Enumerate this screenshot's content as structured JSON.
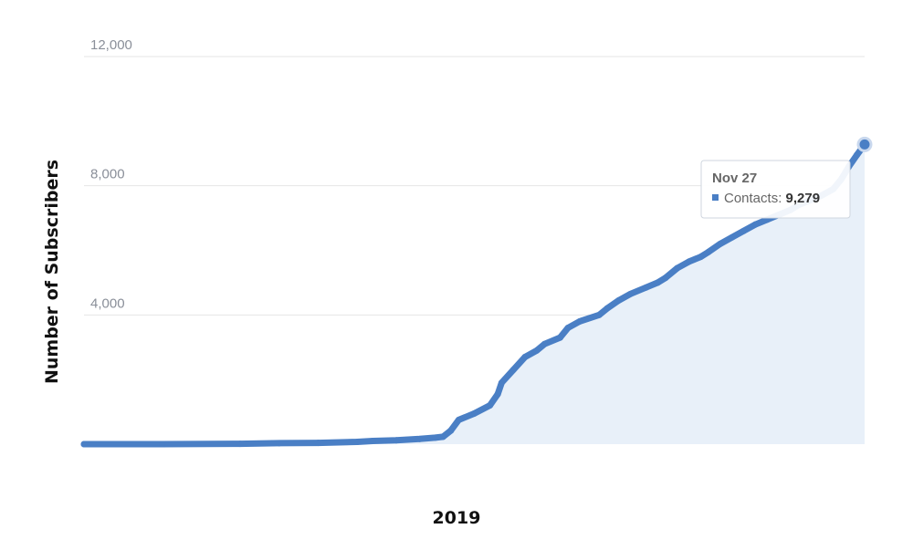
{
  "chart_data": {
    "type": "area",
    "title": "",
    "xlabel": "2019",
    "ylabel": "Number of Subscribers",
    "ylim": [
      0,
      12000
    ],
    "yticks": [
      {
        "value": 4000,
        "label": "4,000"
      },
      {
        "value": 8000,
        "label": "8,000"
      },
      {
        "value": 12000,
        "label": "12,000"
      }
    ],
    "grid": true,
    "series": [
      {
        "name": "Contacts",
        "color": "#4a7fc5",
        "fill_color": "#e8f0f9",
        "points": [
          [
            0.0,
            0
          ],
          [
            0.1,
            0
          ],
          [
            0.2,
            10
          ],
          [
            0.25,
            30
          ],
          [
            0.3,
            40
          ],
          [
            0.35,
            70
          ],
          [
            0.37,
            100
          ],
          [
            0.4,
            120
          ],
          [
            0.43,
            160
          ],
          [
            0.45,
            200
          ],
          [
            0.46,
            230
          ],
          [
            0.47,
            420
          ],
          [
            0.48,
            750
          ],
          [
            0.5,
            950
          ],
          [
            0.52,
            1200
          ],
          [
            0.53,
            1550
          ],
          [
            0.535,
            1900
          ],
          [
            0.55,
            2300
          ],
          [
            0.565,
            2700
          ],
          [
            0.58,
            2900
          ],
          [
            0.59,
            3100
          ],
          [
            0.61,
            3300
          ],
          [
            0.62,
            3600
          ],
          [
            0.635,
            3800
          ],
          [
            0.66,
            4000
          ],
          [
            0.67,
            4200
          ],
          [
            0.685,
            4450
          ],
          [
            0.7,
            4650
          ],
          [
            0.72,
            4850
          ],
          [
            0.735,
            5000
          ],
          [
            0.745,
            5150
          ],
          [
            0.76,
            5450
          ],
          [
            0.775,
            5650
          ],
          [
            0.79,
            5800
          ],
          [
            0.8,
            5950
          ],
          [
            0.815,
            6200
          ],
          [
            0.83,
            6400
          ],
          [
            0.845,
            6600
          ],
          [
            0.86,
            6800
          ],
          [
            0.875,
            6950
          ],
          [
            0.89,
            7100
          ],
          [
            0.905,
            7250
          ],
          [
            0.915,
            7400
          ],
          [
            0.93,
            7550
          ],
          [
            0.945,
            7700
          ],
          [
            0.96,
            7900
          ],
          [
            0.97,
            8200
          ],
          [
            0.98,
            8600
          ],
          [
            0.99,
            8950
          ],
          [
            1.0,
            9279
          ]
        ]
      }
    ],
    "tooltip": {
      "date": "Nov 27",
      "series_label": "Contacts: ",
      "value": "9,279"
    }
  }
}
